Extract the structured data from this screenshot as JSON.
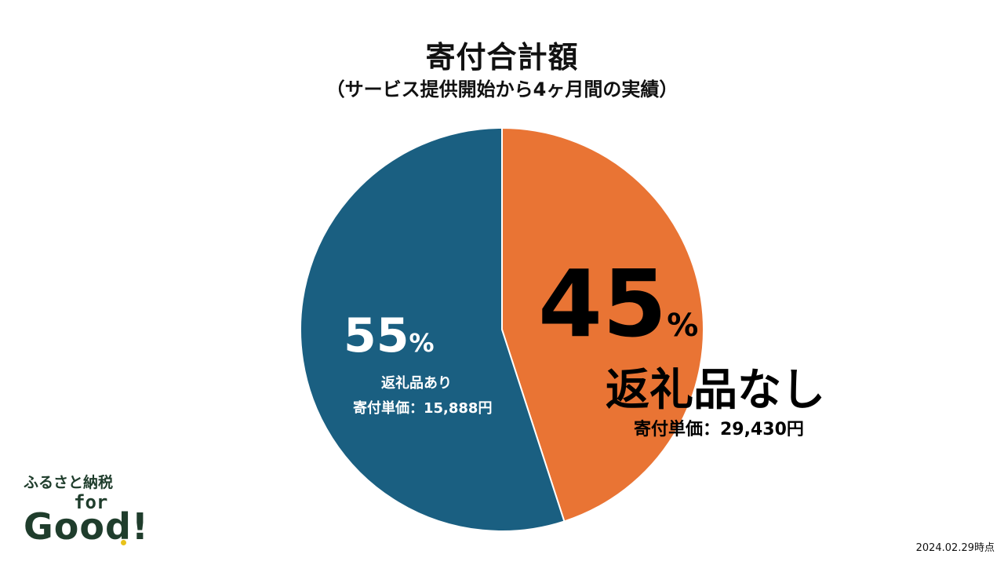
{
  "chart_data": {
    "type": "pie",
    "title": "寄付合計額",
    "subtitle": "（サービス提供開始から4ヶ月間の実績）",
    "slices": [
      {
        "percent": 45,
        "percent_label": "45",
        "label": "返礼品なし",
        "unit_price": "寄付単価：29,430円",
        "color": "#e97434"
      },
      {
        "percent": 55,
        "percent_label": "55",
        "label": "返礼品あり",
        "unit_price": "寄付単価：15,888円",
        "color": "#1a5f81"
      }
    ],
    "start_direction": "top",
    "direction": "clockwise"
  },
  "percent_sign": "%",
  "logo": {
    "line1": "ふるさと納税",
    "line2": "for",
    "line3": "Good!"
  },
  "date_note": "2024.02.29時点"
}
